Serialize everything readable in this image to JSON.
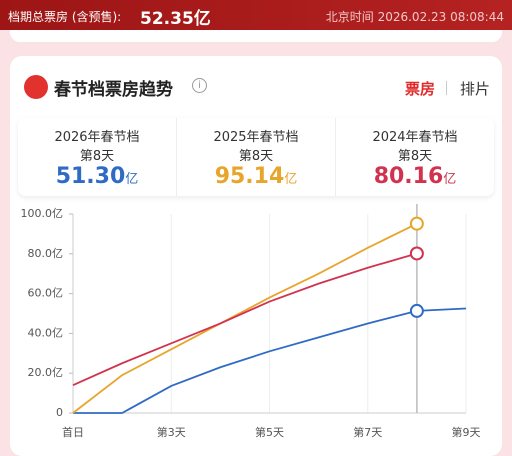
{
  "header": {
    "label": "档期总票房 (含预售):",
    "value": "52.35亿",
    "time_label": "北京时间",
    "time": "2026.02.23 08:08:44"
  },
  "panel": {
    "title": "春节档票房趋势",
    "tabs": [
      "票房",
      "排片"
    ]
  },
  "cards": [
    {
      "year": "2026年春节档",
      "day": "第8天",
      "value": "51.30",
      "unit": "亿"
    },
    {
      "year": "2025年春节档",
      "day": "第8天",
      "value": "95.14",
      "unit": "亿"
    },
    {
      "year": "2024年春节档",
      "day": "第8天",
      "value": "80.16",
      "unit": "亿"
    }
  ],
  "chart_data": {
    "type": "line",
    "xlim": [
      1,
      9
    ],
    "xticks": [
      {
        "value": 1,
        "label": "首日"
      },
      {
        "value": 3,
        "label": "第3天"
      },
      {
        "value": 5,
        "label": "第5天"
      },
      {
        "value": 7,
        "label": "第7天"
      },
      {
        "value": 9,
        "label": "第9天"
      }
    ],
    "ylim": [
      0,
      100
    ],
    "yticks": [
      0,
      {
        "value": 20,
        "label": "20.0亿"
      },
      {
        "value": 40,
        "label": "40.0亿"
      },
      {
        "value": 60,
        "label": "60.0亿"
      },
      {
        "value": 80,
        "label": "80.0亿"
      },
      {
        "value": 100,
        "label": "100.0亿"
      }
    ],
    "grid": true,
    "marker_x": 8,
    "series": [
      {
        "name": "2026年春节档",
        "color": "#2f6bc4",
        "x": [
          1,
          2,
          3,
          4,
          5,
          6,
          7,
          8,
          9
        ],
        "values": [
          0,
          0,
          13.6,
          23,
          31,
          38,
          45,
          51.3,
          52.5
        ]
      },
      {
        "name": "2025年春节档",
        "color": "#e8a52c",
        "x": [
          1,
          2,
          3,
          4,
          5,
          6,
          7,
          8
        ],
        "values": [
          0,
          19,
          32,
          45,
          58,
          70,
          83,
          95.14
        ]
      },
      {
        "name": "2024年春节档",
        "color": "#d1334f",
        "x": [
          1,
          2,
          3,
          4,
          5,
          6,
          7,
          8
        ],
        "values": [
          14,
          25,
          35,
          45,
          56,
          65,
          73,
          80.16
        ]
      }
    ]
  }
}
